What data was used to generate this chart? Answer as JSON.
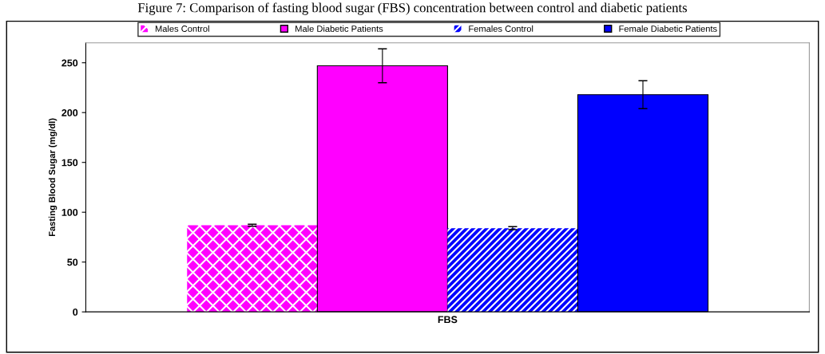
{
  "chart_data": {
    "type": "bar",
    "title": "Figure 7: Comparison of fasting blood sugar (FBS) concentration between control and diabetic patients",
    "categories": [
      "FBS"
    ],
    "series": [
      {
        "name": "Males Control",
        "color": "#ff00ff",
        "values": [
          87
        ],
        "errors": [
          1
        ]
      },
      {
        "name": "Male Diabetic Patients",
        "color": "#ff00ff",
        "values": [
          247
        ],
        "errors": [
          17
        ]
      },
      {
        "name": "Females Control",
        "color": "#0000ff",
        "values": [
          84
        ],
        "errors": [
          1.5
        ]
      },
      {
        "name": "Female Diabetic Patients",
        "color": "#0000ff",
        "values": [
          218
        ],
        "errors": [
          14
        ]
      }
    ],
    "ylabel": "Fasting Blood Sugar (mg/dl)",
    "ylim": [
      0,
      270
    ],
    "yticks": [
      0,
      50,
      100,
      150,
      200,
      250
    ],
    "grid": false,
    "legend": "top"
  }
}
